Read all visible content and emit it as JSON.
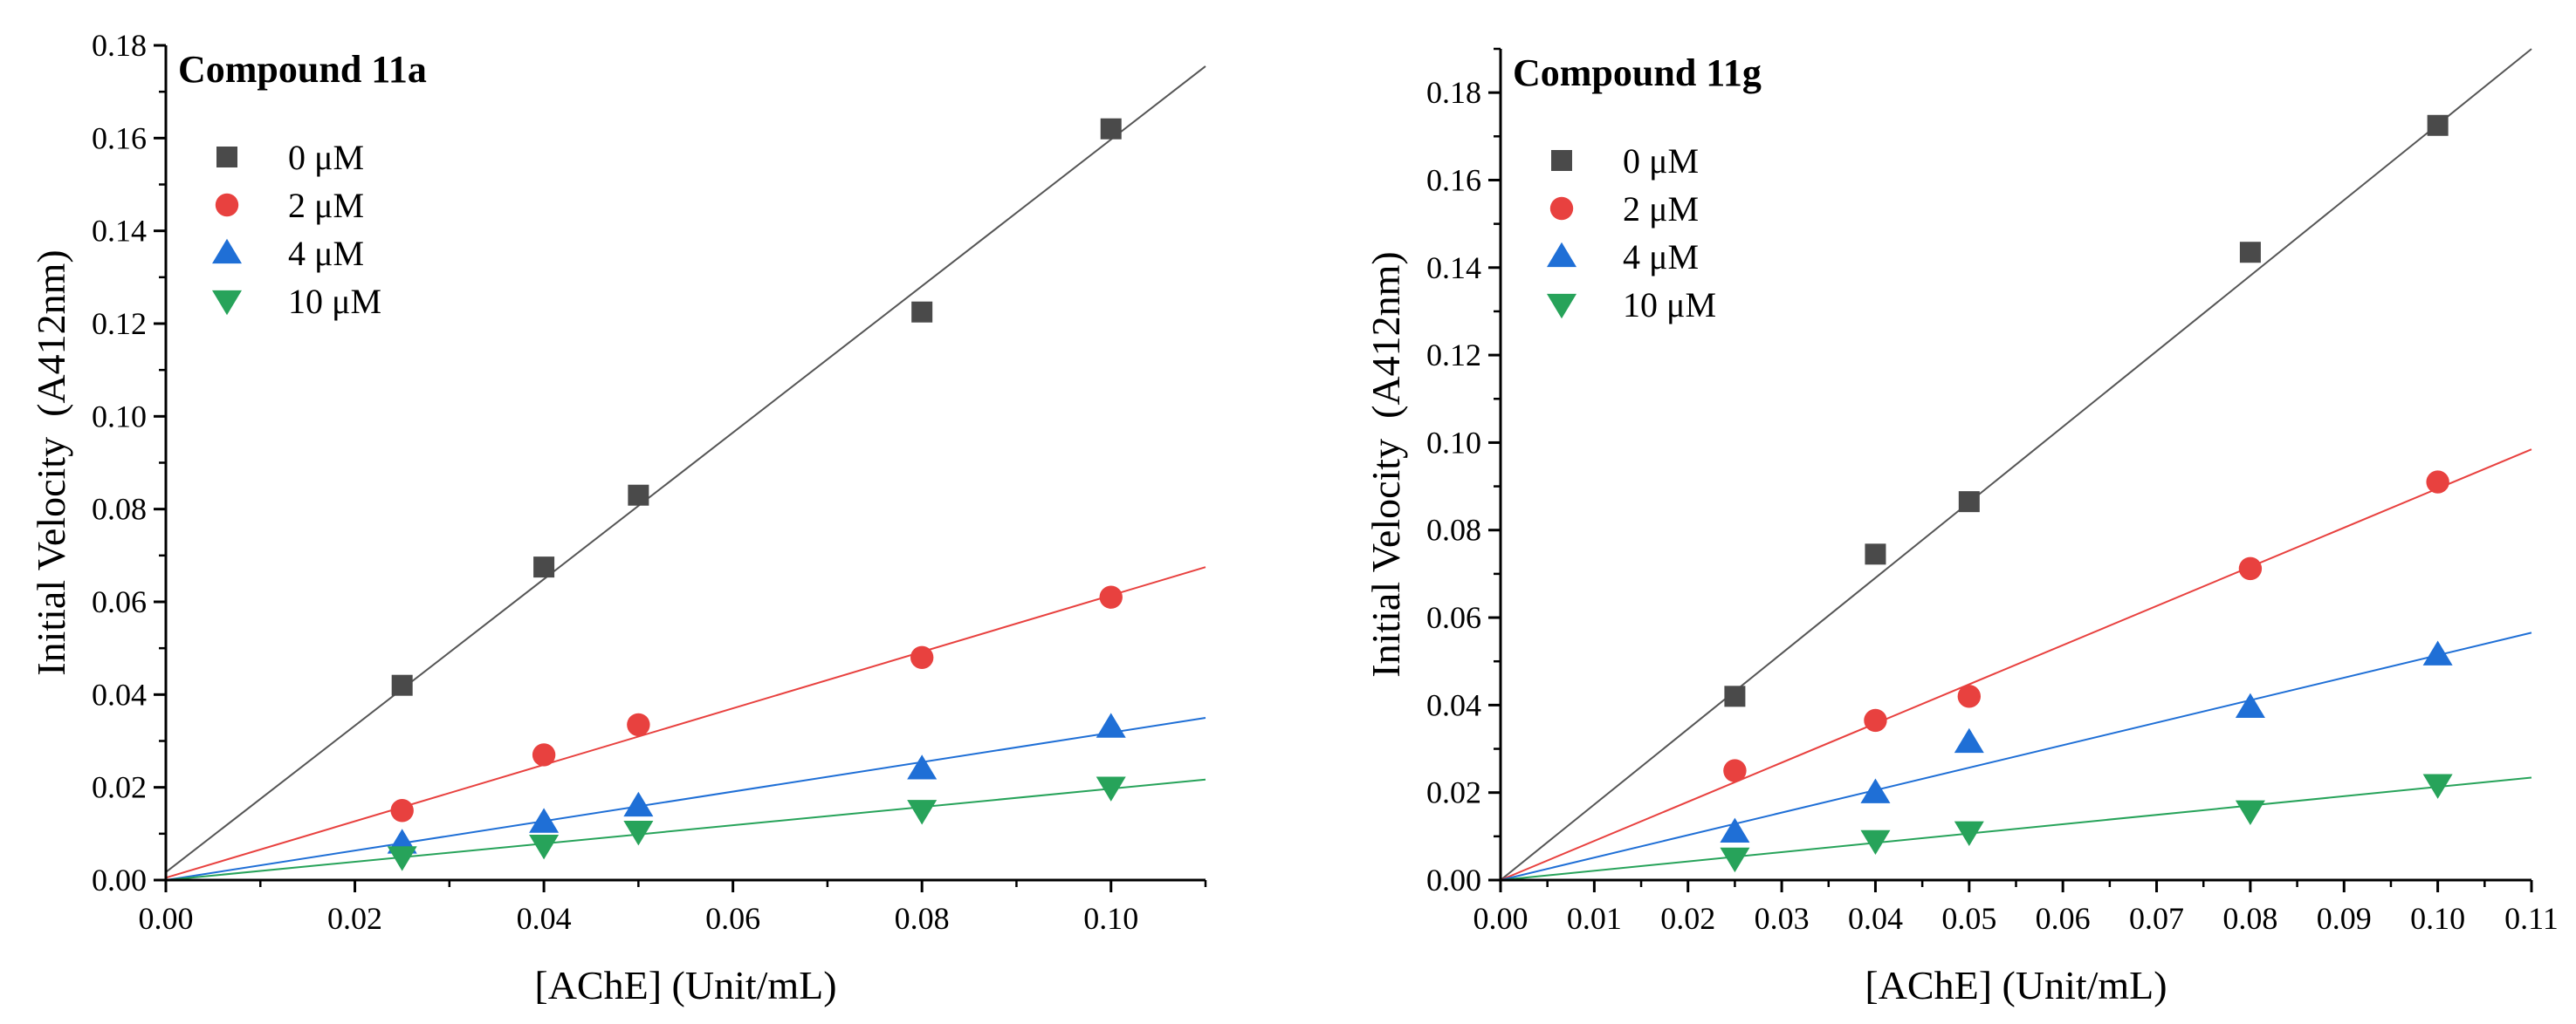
{
  "chart_data": [
    {
      "type": "scatter",
      "title": "Compound 11a",
      "xlabel": "[AChE] (Unit/mL)",
      "ylabel": "Initial Velocity  (A412nm)",
      "xlim": [
        0,
        0.11
      ],
      "ylim": [
        0,
        0.18
      ],
      "xticks": [
        "0.00",
        "0.02",
        "0.04",
        "0.06",
        "0.08",
        "0.10"
      ],
      "yticks": [
        "0.00",
        "0.02",
        "0.04",
        "0.06",
        "0.08",
        "0.10",
        "0.12",
        "0.14",
        "0.16",
        "0.18"
      ],
      "x": [
        0.025,
        0.04,
        0.05,
        0.08,
        0.1
      ],
      "series": [
        {
          "name": "0 μM",
          "marker": "square",
          "color": "#4a4a4a",
          "line_color": "#555555",
          "values": [
            0.042,
            0.0675,
            0.083,
            0.1225,
            0.162
          ],
          "fit": [
            0.0017,
            1.58
          ]
        },
        {
          "name": "2 μM",
          "marker": "circle",
          "color": "#e8413f",
          "line_color": "#e8413f",
          "values": [
            0.015,
            0.027,
            0.0335,
            0.048,
            0.061
          ],
          "fit": [
            0.0005,
            0.609
          ]
        },
        {
          "name": "4 μM",
          "marker": "triangle-up",
          "color": "#1f6fd6",
          "line_color": "#1f6fd6",
          "values": [
            0.008,
            0.0125,
            0.016,
            0.024,
            0.033
          ],
          "fit": [
            0,
            0.318
          ]
        },
        {
          "name": "10 μM",
          "marker": "triangle-down",
          "color": "#27a35a",
          "line_color": "#27a35a",
          "values": [
            0.005,
            0.0075,
            0.0105,
            0.015,
            0.02
          ],
          "fit": [
            0,
            0.197
          ]
        }
      ],
      "legend": "top-left",
      "grid": false
    },
    {
      "type": "scatter",
      "title": "Compound 11g",
      "xlabel": "[AChE] (Unit/mL)",
      "ylabel": "Initial Velocity  (A412nm)",
      "xlim": [
        0,
        0.11
      ],
      "ylim": [
        0,
        0.19
      ],
      "xticks": [
        "0.00",
        "0.01",
        "0.02",
        "0.03",
        "0.04",
        "0.05",
        "0.06",
        "0.07",
        "0.08",
        "0.09",
        "0.10",
        "0.11"
      ],
      "yticks": [
        "0.00",
        "0.02",
        "0.04",
        "0.06",
        "0.08",
        "0.10",
        "0.12",
        "0.14",
        "0.16",
        "0.18"
      ],
      "x": [
        0.025,
        0.04,
        0.05,
        0.08,
        0.1
      ],
      "series": [
        {
          "name": "0 μM",
          "marker": "square",
          "color": "#4a4a4a",
          "line_color": "#555555",
          "values": [
            0.042,
            0.0745,
            0.0865,
            0.1435,
            0.1725
          ],
          "fit": [
            0,
            1.727
          ]
        },
        {
          "name": "2 μM",
          "marker": "circle",
          "color": "#e8413f",
          "line_color": "#e8413f",
          "values": [
            0.025,
            0.0365,
            0.042,
            0.0712,
            0.091
          ],
          "fit": [
            0,
            0.895
          ]
        },
        {
          "name": "4 μM",
          "marker": "triangle-up",
          "color": "#1f6fd6",
          "line_color": "#1f6fd6",
          "values": [
            0.011,
            0.02,
            0.0315,
            0.0395,
            0.0515
          ],
          "fit": [
            0,
            0.514
          ]
        },
        {
          "name": "10 μM",
          "marker": "triangle-down",
          "color": "#27a35a",
          "line_color": "#27a35a",
          "values": [
            0.005,
            0.009,
            0.011,
            0.0158,
            0.0218
          ],
          "fit": [
            0,
            0.213
          ]
        }
      ],
      "legend": "top-left",
      "grid": false
    }
  ]
}
